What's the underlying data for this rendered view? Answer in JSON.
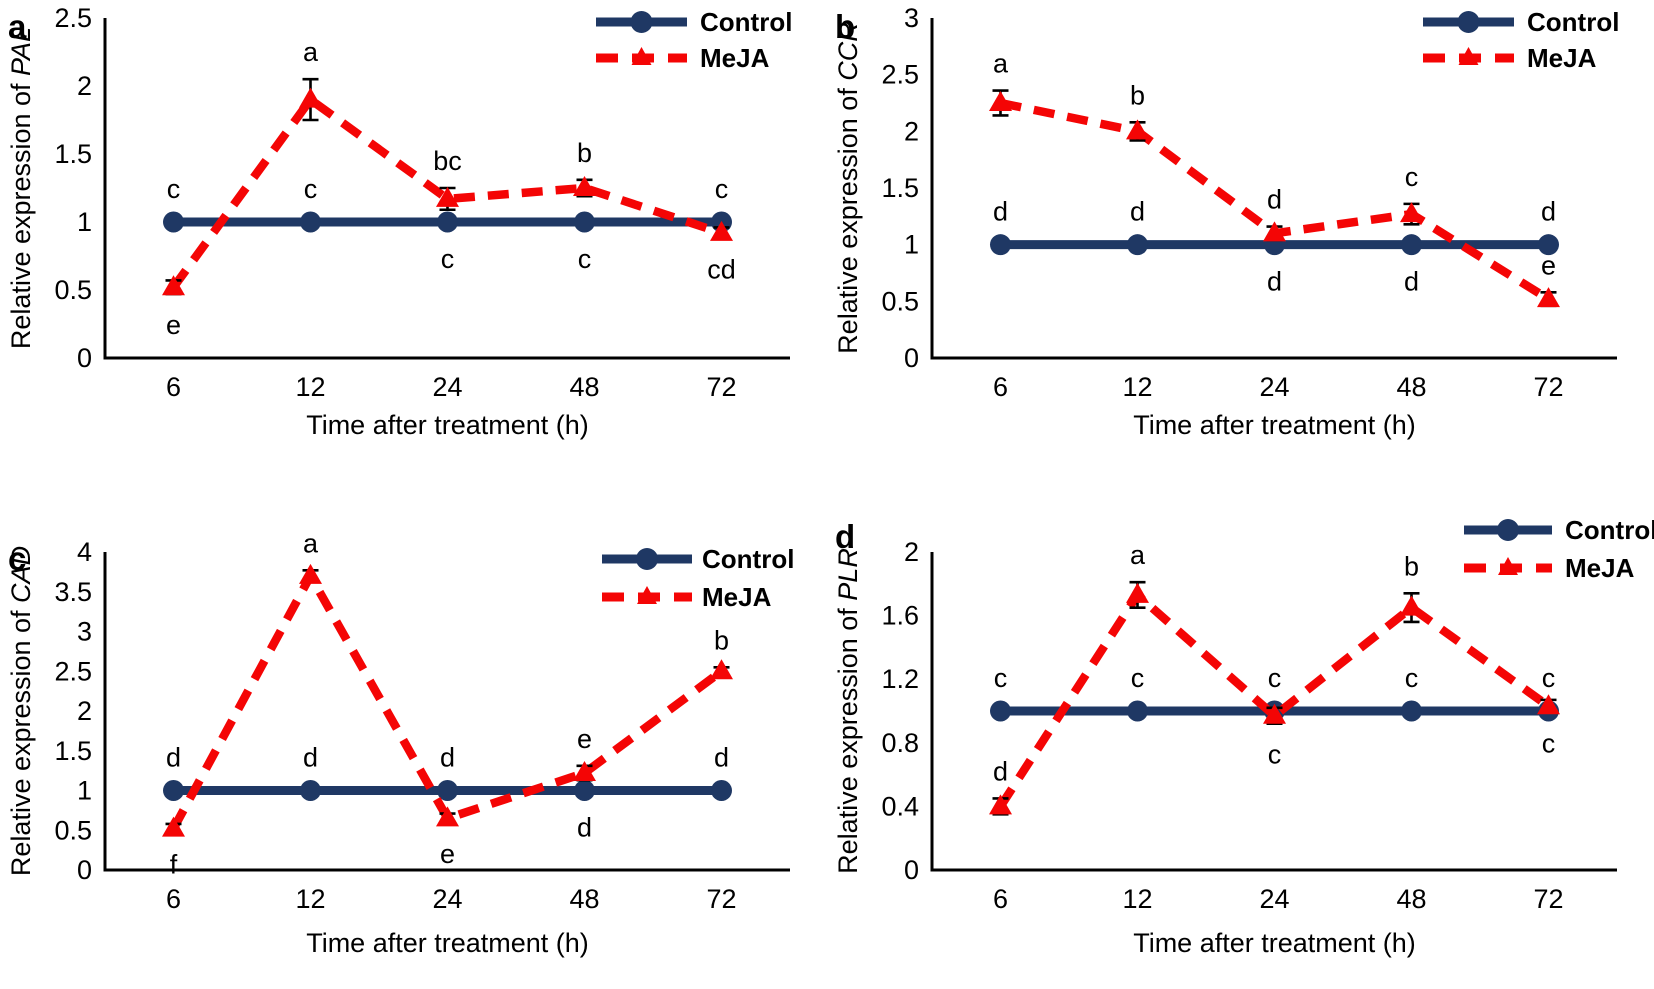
{
  "figure": {
    "description": "Four-panel line chart figure comparing gene expression over time between Control and MeJA treatment",
    "background": "#ffffff"
  },
  "colors": {
    "control_line": "#1f3864",
    "meja_line": "#f40505",
    "axis": "#000000",
    "error_bar": "#000000",
    "text": "#000000"
  },
  "legend": {
    "control_label": "Control",
    "meja_label": "MeJA"
  },
  "chart_data": [
    {
      "panel": "a",
      "type": "line",
      "title": "",
      "xlabel": "Time after treatment (h)",
      "ylabel_prefix": "Relative expression of ",
      "ylabel_gene": "PAL",
      "ylim": [
        0,
        2.5
      ],
      "yticks": [
        "0",
        "0.5",
        "1",
        "1.5",
        "2",
        "2.5"
      ],
      "categories": [
        "6",
        "12",
        "24",
        "48",
        "72"
      ],
      "grid": false,
      "legend_position": "top-right",
      "legend_entries": [
        "Control",
        "MeJA"
      ],
      "series": [
        {
          "name": "Control",
          "marker": "circle",
          "line_style": "solid",
          "values": [
            1,
            1,
            1,
            1,
            1
          ],
          "errors": [
            0,
            0,
            0,
            0,
            0
          ],
          "letters": [
            {
              "label": "c",
              "pos": "above"
            },
            {
              "label": "c",
              "pos": "above"
            },
            {
              "label": "c",
              "pos": "below"
            },
            {
              "label": "c",
              "pos": "below"
            },
            {
              "label": "c",
              "pos": "above"
            }
          ]
        },
        {
          "name": "MeJA",
          "marker": "triangle",
          "line_style": "dashed",
          "values": [
            0.52,
            1.9,
            1.17,
            1.25,
            0.92
          ],
          "errors": [
            0.05,
            0.15,
            0.08,
            0.06,
            0.04
          ],
          "letters": [
            {
              "label": "e",
              "pos": "below"
            },
            {
              "label": "a",
              "pos": "above"
            },
            {
              "label": "bc",
              "pos": "above"
            },
            {
              "label": "b",
              "pos": "above"
            },
            {
              "label": "cd",
              "pos": "below"
            }
          ]
        }
      ]
    },
    {
      "panel": "b",
      "type": "line",
      "title": "",
      "xlabel": "Time after treatment (h)",
      "ylabel_prefix": "Relative expression of ",
      "ylabel_gene": "CCR",
      "ylim": [
        0,
        3
      ],
      "yticks": [
        "0",
        "0.5",
        "1",
        "1.5",
        "2",
        "2.5",
        "3"
      ],
      "categories": [
        "6",
        "12",
        "24",
        "48",
        "72"
      ],
      "grid": false,
      "legend_position": "top-right",
      "legend_entries": [
        "Control",
        "MeJA"
      ],
      "series": [
        {
          "name": "Control",
          "marker": "circle",
          "line_style": "solid",
          "values": [
            1,
            1,
            1,
            1,
            1
          ],
          "errors": [
            0,
            0,
            0,
            0,
            0
          ],
          "letters": [
            {
              "label": "d",
              "pos": "above"
            },
            {
              "label": "d",
              "pos": "above"
            },
            {
              "label": "d",
              "pos": "below"
            },
            {
              "label": "d",
              "pos": "below"
            },
            {
              "label": "d",
              "pos": "above"
            }
          ]
        },
        {
          "name": "MeJA",
          "marker": "triangle",
          "line_style": "dashed",
          "values": [
            2.25,
            2.0,
            1.1,
            1.27,
            0.52
          ],
          "errors": [
            0.11,
            0.08,
            0.06,
            0.09,
            0.06
          ],
          "letters": [
            {
              "label": "a",
              "pos": "above"
            },
            {
              "label": "b",
              "pos": "above"
            },
            {
              "label": "d",
              "pos": "above"
            },
            {
              "label": "c",
              "pos": "above"
            },
            {
              "label": "e",
              "pos": "above"
            }
          ]
        }
      ]
    },
    {
      "panel": "c",
      "type": "line",
      "title": "",
      "xlabel": "Time after treatment (h)",
      "ylabel_prefix": "Relative expression of ",
      "ylabel_gene": "CAD",
      "ylim": [
        0,
        4
      ],
      "yticks": [
        "0",
        "0.5",
        "1",
        "1.5",
        "2",
        "2.5",
        "3",
        "3.5",
        "4"
      ],
      "categories": [
        "6",
        "12",
        "24",
        "48",
        "72"
      ],
      "grid": false,
      "legend_position": "top-right",
      "legend_entries": [
        "Control",
        "MeJA"
      ],
      "series": [
        {
          "name": "Control",
          "marker": "circle",
          "line_style": "solid",
          "values": [
            1,
            1,
            1,
            1,
            1
          ],
          "errors": [
            0,
            0,
            0,
            0,
            0
          ],
          "letters": [
            {
              "label": "d",
              "pos": "above"
            },
            {
              "label": "d",
              "pos": "above"
            },
            {
              "label": "d",
              "pos": "above"
            },
            {
              "label": "d",
              "pos": "below"
            },
            {
              "label": "d",
              "pos": "above"
            }
          ]
        },
        {
          "name": "MeJA",
          "marker": "triangle",
          "line_style": "dashed",
          "values": [
            0.52,
            3.7,
            0.65,
            1.22,
            2.5
          ],
          "errors": [
            0.06,
            0.07,
            0.06,
            0.09,
            0.05
          ],
          "letters": [
            {
              "label": "f",
              "pos": "below"
            },
            {
              "label": "a",
              "pos": "above"
            },
            {
              "label": "e",
              "pos": "below"
            },
            {
              "label": "e",
              "pos": "above"
            },
            {
              "label": "b",
              "pos": "above"
            }
          ]
        }
      ]
    },
    {
      "panel": "d",
      "type": "line",
      "title": "",
      "xlabel": "Time after treatment (h)",
      "ylabel_prefix": "Relative expression of ",
      "ylabel_gene": "PLR",
      "ylim": [
        0,
        2
      ],
      "yticks": [
        "0",
        "0.4",
        "0.8",
        "1.2",
        "1.6",
        "2"
      ],
      "categories": [
        "6",
        "12",
        "24",
        "48",
        "72"
      ],
      "grid": false,
      "legend_position": "top-right",
      "legend_entries": [
        "Control",
        "MeJA"
      ],
      "series": [
        {
          "name": "Control",
          "marker": "circle",
          "line_style": "solid",
          "values": [
            1,
            1,
            1,
            1,
            1
          ],
          "errors": [
            0,
            0,
            0,
            0,
            0
          ],
          "letters": [
            {
              "label": "c",
              "pos": "above"
            },
            {
              "label": "c",
              "pos": "above"
            },
            {
              "label": "c",
              "pos": "above"
            },
            {
              "label": "c",
              "pos": "above"
            },
            {
              "label": "c",
              "pos": "above"
            }
          ]
        },
        {
          "name": "MeJA",
          "marker": "triangle",
          "line_style": "dashed",
          "values": [
            0.4,
            1.73,
            0.97,
            1.65,
            1.03
          ],
          "errors": [
            0.05,
            0.08,
            0.05,
            0.09,
            0.04
          ],
          "letters": [
            {
              "label": "d",
              "pos": "above"
            },
            {
              "label": "a",
              "pos": "above"
            },
            {
              "label": "c",
              "pos": "below"
            },
            {
              "label": "b",
              "pos": "above"
            },
            {
              "label": "c",
              "pos": "below"
            }
          ]
        }
      ]
    }
  ]
}
